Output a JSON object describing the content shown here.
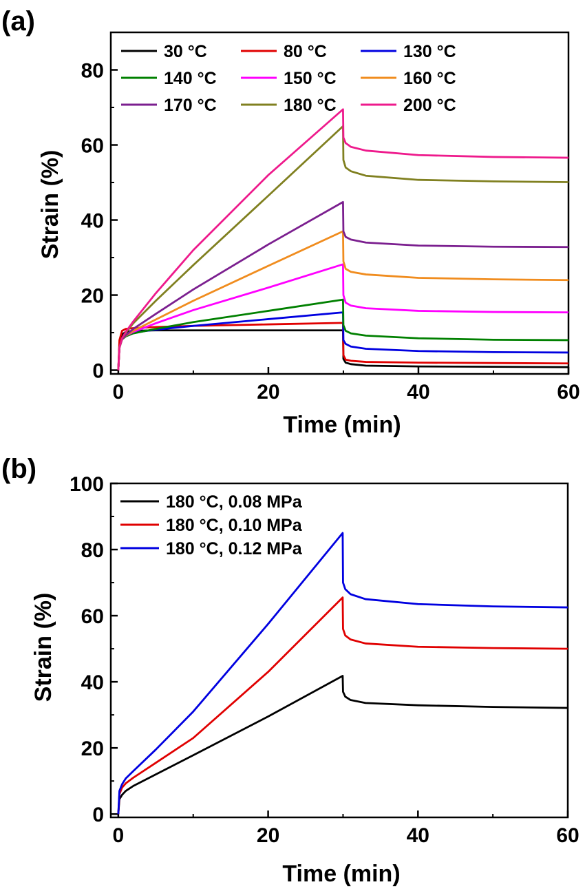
{
  "chart_data": [
    {
      "panel_label": "(a)",
      "type": "line",
      "xlabel": "Time (min)",
      "ylabel": "Strain (%)",
      "xlim": [
        -1,
        60
      ],
      "ylim": [
        -1,
        90
      ],
      "xticks": [
        0,
        20,
        40,
        60
      ],
      "yticks": [
        0,
        20,
        40,
        60,
        80
      ],
      "minor_x": 10,
      "minor_y": 10,
      "grid": false,
      "legend_position": "top",
      "legend_columns": 3,
      "series": [
        {
          "name": "30 °C",
          "color": "#000000",
          "x": [
            0,
            0.15,
            0.5,
            1,
            2,
            5,
            10,
            20,
            29.95,
            30.0,
            30.3,
            31,
            33,
            40,
            50,
            60
          ],
          "y": [
            0,
            7,
            9.5,
            10.2,
            10.5,
            10.6,
            10.6,
            10.6,
            10.6,
            3.0,
            2.0,
            1.6,
            1.2,
            1.0,
            0.9,
            0.8
          ]
        },
        {
          "name": "80 °C",
          "color": "#e00000",
          "x": [
            0,
            0.15,
            0.5,
            1,
            2,
            5,
            10,
            20,
            29.95,
            30.0,
            30.3,
            31,
            33,
            40,
            50,
            60
          ],
          "y": [
            0,
            8,
            10.5,
            11.0,
            11.2,
            11.5,
            11.8,
            12.2,
            12.6,
            4.0,
            2.8,
            2.5,
            2.2,
            2.0,
            1.9,
            1.8
          ]
        },
        {
          "name": "130 °C",
          "color": "#0000e0",
          "x": [
            0,
            0.15,
            0.5,
            1,
            2,
            5,
            10,
            20,
            29.95,
            30.0,
            30.3,
            31,
            33,
            40,
            50,
            60
          ],
          "y": [
            0,
            6,
            8.5,
            9.4,
            10.0,
            10.8,
            11.8,
            13.6,
            15.4,
            8.0,
            7.0,
            6.3,
            5.7,
            5.1,
            4.8,
            4.7
          ]
        },
        {
          "name": "140 °C",
          "color": "#008000",
          "x": [
            0,
            0.15,
            0.5,
            1,
            2,
            5,
            10,
            20,
            29.95,
            30.0,
            30.3,
            31,
            33,
            40,
            50,
            60
          ],
          "y": [
            0,
            6,
            8.2,
            9.0,
            9.8,
            11.0,
            12.8,
            15.8,
            18.8,
            12.0,
            10.5,
            9.8,
            9.2,
            8.5,
            8.1,
            8.0
          ]
        },
        {
          "name": "150 °C",
          "color": "#ff00ff",
          "x": [
            0,
            0.15,
            0.5,
            1,
            2,
            5,
            10,
            20,
            29.95,
            30.0,
            30.3,
            31,
            33,
            40,
            50,
            60
          ],
          "y": [
            0,
            6,
            8.3,
            9.2,
            10.2,
            12.5,
            16.0,
            22.0,
            28.2,
            20.0,
            18.0,
            17.2,
            16.5,
            15.8,
            15.5,
            15.4
          ]
        },
        {
          "name": "160 °C",
          "color": "#f08c1e",
          "x": [
            0,
            0.15,
            0.5,
            1,
            2,
            5,
            10,
            20,
            29.95,
            30.0,
            30.3,
            31,
            33,
            40,
            50,
            60
          ],
          "y": [
            0,
            6,
            8.2,
            9.2,
            10.5,
            13.5,
            18.5,
            27.8,
            37.0,
            29.0,
            27.0,
            26.2,
            25.5,
            24.6,
            24.2,
            24.0
          ]
        },
        {
          "name": "170 °C",
          "color": "#7b1f8f",
          "x": [
            0,
            0.15,
            0.5,
            1,
            2,
            5,
            10,
            20,
            29.95,
            30.0,
            30.3,
            31,
            33,
            40,
            50,
            60
          ],
          "y": [
            0,
            6,
            8.2,
            9.3,
            11.0,
            15.0,
            21.5,
            33.5,
            44.8,
            37.0,
            35.5,
            34.8,
            34.0,
            33.2,
            32.9,
            32.8
          ]
        },
        {
          "name": "180 °C",
          "color": "#808020",
          "x": [
            0,
            0.15,
            0.5,
            1,
            2,
            5,
            10,
            20,
            29.95,
            30.0,
            30.3,
            31,
            33,
            40,
            50,
            60
          ],
          "y": [
            0,
            6,
            8.5,
            10.0,
            12.5,
            18.5,
            28.0,
            46.5,
            65.0,
            56.0,
            54.0,
            53.0,
            51.8,
            50.7,
            50.3,
            50.1
          ]
        },
        {
          "name": "200 °C",
          "color": "#ee1a8c",
          "x": [
            0,
            0.15,
            0.5,
            1,
            2,
            5,
            10,
            20,
            29.95,
            30.0,
            30.3,
            31,
            33,
            40,
            50,
            60
          ],
          "y": [
            0,
            6,
            8.5,
            10.2,
            13.0,
            20.5,
            32.0,
            52.0,
            69.5,
            62.0,
            60.5,
            59.5,
            58.5,
            57.3,
            56.8,
            56.6
          ]
        }
      ]
    },
    {
      "panel_label": "(b)",
      "type": "line",
      "xlabel": "Time (min)",
      "ylabel": "Strain (%)",
      "xlim": [
        -1,
        60
      ],
      "ylim": [
        -1,
        100
      ],
      "xticks": [
        0,
        20,
        40,
        60
      ],
      "yticks": [
        0,
        20,
        40,
        60,
        80,
        100
      ],
      "minor_x": 10,
      "minor_y": 10,
      "grid": false,
      "legend_position": "top-left",
      "legend_columns": 1,
      "series": [
        {
          "name": "180 °C, 0.08 MPa",
          "color": "#000000",
          "x": [
            0,
            0.15,
            0.5,
            1,
            2,
            5,
            10,
            20,
            29.95,
            30.0,
            30.3,
            31,
            33,
            40,
            50,
            60
          ],
          "y": [
            0,
            4.5,
            5.8,
            7.0,
            8.5,
            12.0,
            17.8,
            29.5,
            41.8,
            37.0,
            35.5,
            34.5,
            33.6,
            32.9,
            32.4,
            32.1
          ]
        },
        {
          "name": "180 °C, 0.10 MPa",
          "color": "#e00000",
          "x": [
            0,
            0.15,
            0.5,
            1,
            2,
            5,
            10,
            20,
            29.95,
            30.0,
            30.3,
            31,
            33,
            40,
            50,
            60
          ],
          "y": [
            0,
            6.0,
            8.0,
            9.3,
            11.0,
            15.5,
            23.0,
            43.0,
            65.5,
            56.0,
            54.0,
            52.8,
            51.6,
            50.6,
            50.2,
            50.0
          ]
        },
        {
          "name": "180 °C, 0.12 MPa",
          "color": "#0000e0",
          "x": [
            0,
            0.15,
            0.5,
            1,
            2,
            5,
            10,
            20,
            29.95,
            30.0,
            30.3,
            31,
            33,
            40,
            50,
            60
          ],
          "y": [
            0,
            7.0,
            9.0,
            10.8,
            13.0,
            19.5,
            31.0,
            57.5,
            85.0,
            70.0,
            68.0,
            66.5,
            65.0,
            63.5,
            62.8,
            62.5
          ]
        }
      ]
    }
  ]
}
